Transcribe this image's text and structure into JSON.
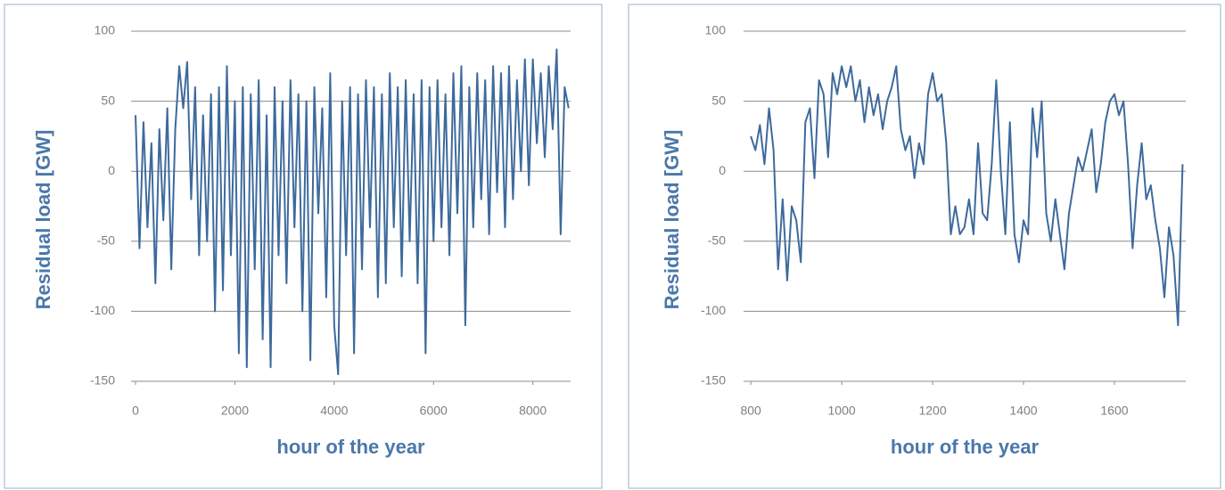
{
  "chart_data": [
    {
      "type": "line",
      "y_label": "Residual load [GW]",
      "x_label": "hour of the year",
      "x": [
        0,
        80,
        160,
        240,
        320,
        400,
        480,
        560,
        640,
        720,
        800,
        880,
        960,
        1040,
        1120,
        1200,
        1280,
        1360,
        1440,
        1520,
        1600,
        1680,
        1760,
        1840,
        1920,
        2000,
        2080,
        2160,
        2240,
        2320,
        2400,
        2480,
        2560,
        2640,
        2720,
        2800,
        2880,
        2960,
        3040,
        3120,
        3200,
        3280,
        3360,
        3440,
        3520,
        3600,
        3680,
        3760,
        3840,
        3920,
        4000,
        4080,
        4160,
        4240,
        4320,
        4400,
        4480,
        4560,
        4640,
        4720,
        4800,
        4880,
        4960,
        5040,
        5120,
        5200,
        5280,
        5360,
        5440,
        5520,
        5600,
        5680,
        5760,
        5840,
        5920,
        6000,
        6080,
        6160,
        6240,
        6320,
        6400,
        6480,
        6560,
        6640,
        6720,
        6800,
        6880,
        6960,
        7040,
        7120,
        7200,
        7280,
        7360,
        7440,
        7520,
        7600,
        7680,
        7760,
        7840,
        7920,
        8000,
        8080,
        8160,
        8240,
        8320,
        8400,
        8480,
        8560,
        8640,
        8720
      ],
      "values": [
        40,
        -55,
        35,
        -40,
        20,
        -80,
        30,
        -35,
        45,
        -70,
        30,
        75,
        45,
        78,
        -20,
        60,
        -60,
        40,
        -50,
        55,
        -100,
        60,
        -85,
        75,
        -60,
        50,
        -130,
        60,
        -140,
        55,
        -70,
        65,
        -120,
        40,
        -140,
        60,
        -60,
        50,
        -80,
        65,
        -40,
        55,
        -100,
        50,
        -135,
        60,
        -30,
        45,
        -90,
        70,
        -110,
        -145,
        50,
        -60,
        60,
        -130,
        55,
        -70,
        65,
        -40,
        60,
        -90,
        55,
        -80,
        70,
        -40,
        60,
        -75,
        65,
        -50,
        55,
        -80,
        65,
        -130,
        60,
        -50,
        65,
        -40,
        55,
        -60,
        70,
        -30,
        75,
        -110,
        60,
        -40,
        70,
        -20,
        65,
        -45,
        75,
        -15,
        70,
        -40,
        75,
        -20,
        65,
        0,
        80,
        -10,
        80,
        20,
        70,
        10,
        75,
        30,
        87,
        -45,
        60,
        45
      ],
      "color": "#3d6a9c",
      "xlim": [
        -90,
        8760
      ],
      "xticks": [
        0,
        2000,
        4000,
        6000,
        8000
      ],
      "ylim": [
        -150,
        100
      ],
      "yticks": [
        -150,
        -100,
        -50,
        0,
        50,
        100
      ],
      "grid": true
    },
    {
      "type": "line",
      "y_label": "Residual load [GW]",
      "x_label": "hour of the year",
      "x": [
        800,
        810,
        820,
        830,
        840,
        850,
        860,
        870,
        880,
        890,
        900,
        910,
        920,
        930,
        940,
        950,
        960,
        970,
        980,
        990,
        1000,
        1010,
        1020,
        1030,
        1040,
        1050,
        1060,
        1070,
        1080,
        1090,
        1100,
        1110,
        1120,
        1130,
        1140,
        1150,
        1160,
        1170,
        1180,
        1190,
        1200,
        1210,
        1220,
        1230,
        1240,
        1250,
        1260,
        1270,
        1280,
        1290,
        1300,
        1310,
        1320,
        1330,
        1340,
        1350,
        1360,
        1370,
        1380,
        1390,
        1400,
        1410,
        1420,
        1430,
        1440,
        1450,
        1460,
        1470,
        1480,
        1490,
        1500,
        1510,
        1520,
        1530,
        1540,
        1550,
        1560,
        1570,
        1580,
        1590,
        1600,
        1610,
        1620,
        1630,
        1640,
        1650,
        1660,
        1670,
        1680,
        1690,
        1700,
        1710,
        1720,
        1730,
        1740,
        1750
      ],
      "values": [
        25,
        15,
        33,
        5,
        45,
        15,
        -70,
        -20,
        -78,
        -25,
        -35,
        -65,
        35,
        45,
        -5,
        65,
        55,
        10,
        70,
        55,
        75,
        60,
        75,
        50,
        65,
        35,
        60,
        40,
        55,
        30,
        50,
        60,
        75,
        30,
        15,
        25,
        -5,
        20,
        5,
        55,
        70,
        50,
        55,
        20,
        -45,
        -25,
        -45,
        -40,
        -20,
        -45,
        20,
        -30,
        -35,
        5,
        65,
        0,
        -45,
        35,
        -45,
        -65,
        -35,
        -45,
        45,
        10,
        50,
        -30,
        -50,
        -20,
        -45,
        -70,
        -30,
        -10,
        10,
        0,
        15,
        30,
        -15,
        5,
        35,
        50,
        55,
        40,
        50,
        5,
        -55,
        -10,
        20,
        -20,
        -10,
        -35,
        -55,
        -90,
        -40,
        -60,
        -110,
        5
      ],
      "color": "#3d6a9c",
      "xlim": [
        784,
        1757
      ],
      "xticks": [
        800,
        1000,
        1200,
        1400,
        1600
      ],
      "ylim": [
        -150,
        100
      ],
      "yticks": [
        -150,
        -100,
        -50,
        0,
        50,
        100
      ],
      "grid": true
    }
  ]
}
